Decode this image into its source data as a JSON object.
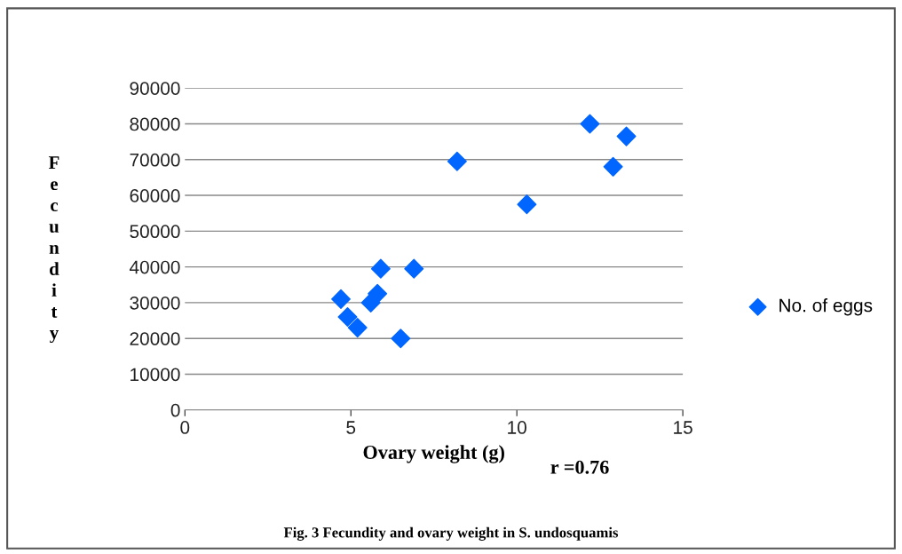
{
  "chart_data": {
    "type": "scatter",
    "title": "Fig. 3 Fecundity and ovary weight in S. undosquamis",
    "xlabel": "Ovary weight (g)",
    "ylabel": "Fecundity",
    "annotations": [
      "r =0.76"
    ],
    "series": [
      {
        "name": "No. of eggs",
        "color": "#0066ff",
        "x": [
          4.7,
          4.9,
          5.2,
          5.6,
          5.8,
          5.9,
          6.5,
          6.9,
          8.2,
          10.3,
          12.2,
          12.9,
          13.3
        ],
        "values": [
          31000,
          26000,
          23000,
          30000,
          32500,
          39500,
          20000,
          39500,
          69500,
          57500,
          80000,
          68000,
          76500
        ]
      }
    ],
    "xlim": [
      0,
      15
    ],
    "xticks": [
      0,
      5,
      10,
      15
    ],
    "ylim": [
      0,
      90000
    ],
    "yticks": [
      0,
      10000,
      20000,
      30000,
      40000,
      50000,
      60000,
      70000,
      80000,
      90000
    ],
    "grid": "y",
    "legend": "right",
    "marker": "diamond"
  }
}
